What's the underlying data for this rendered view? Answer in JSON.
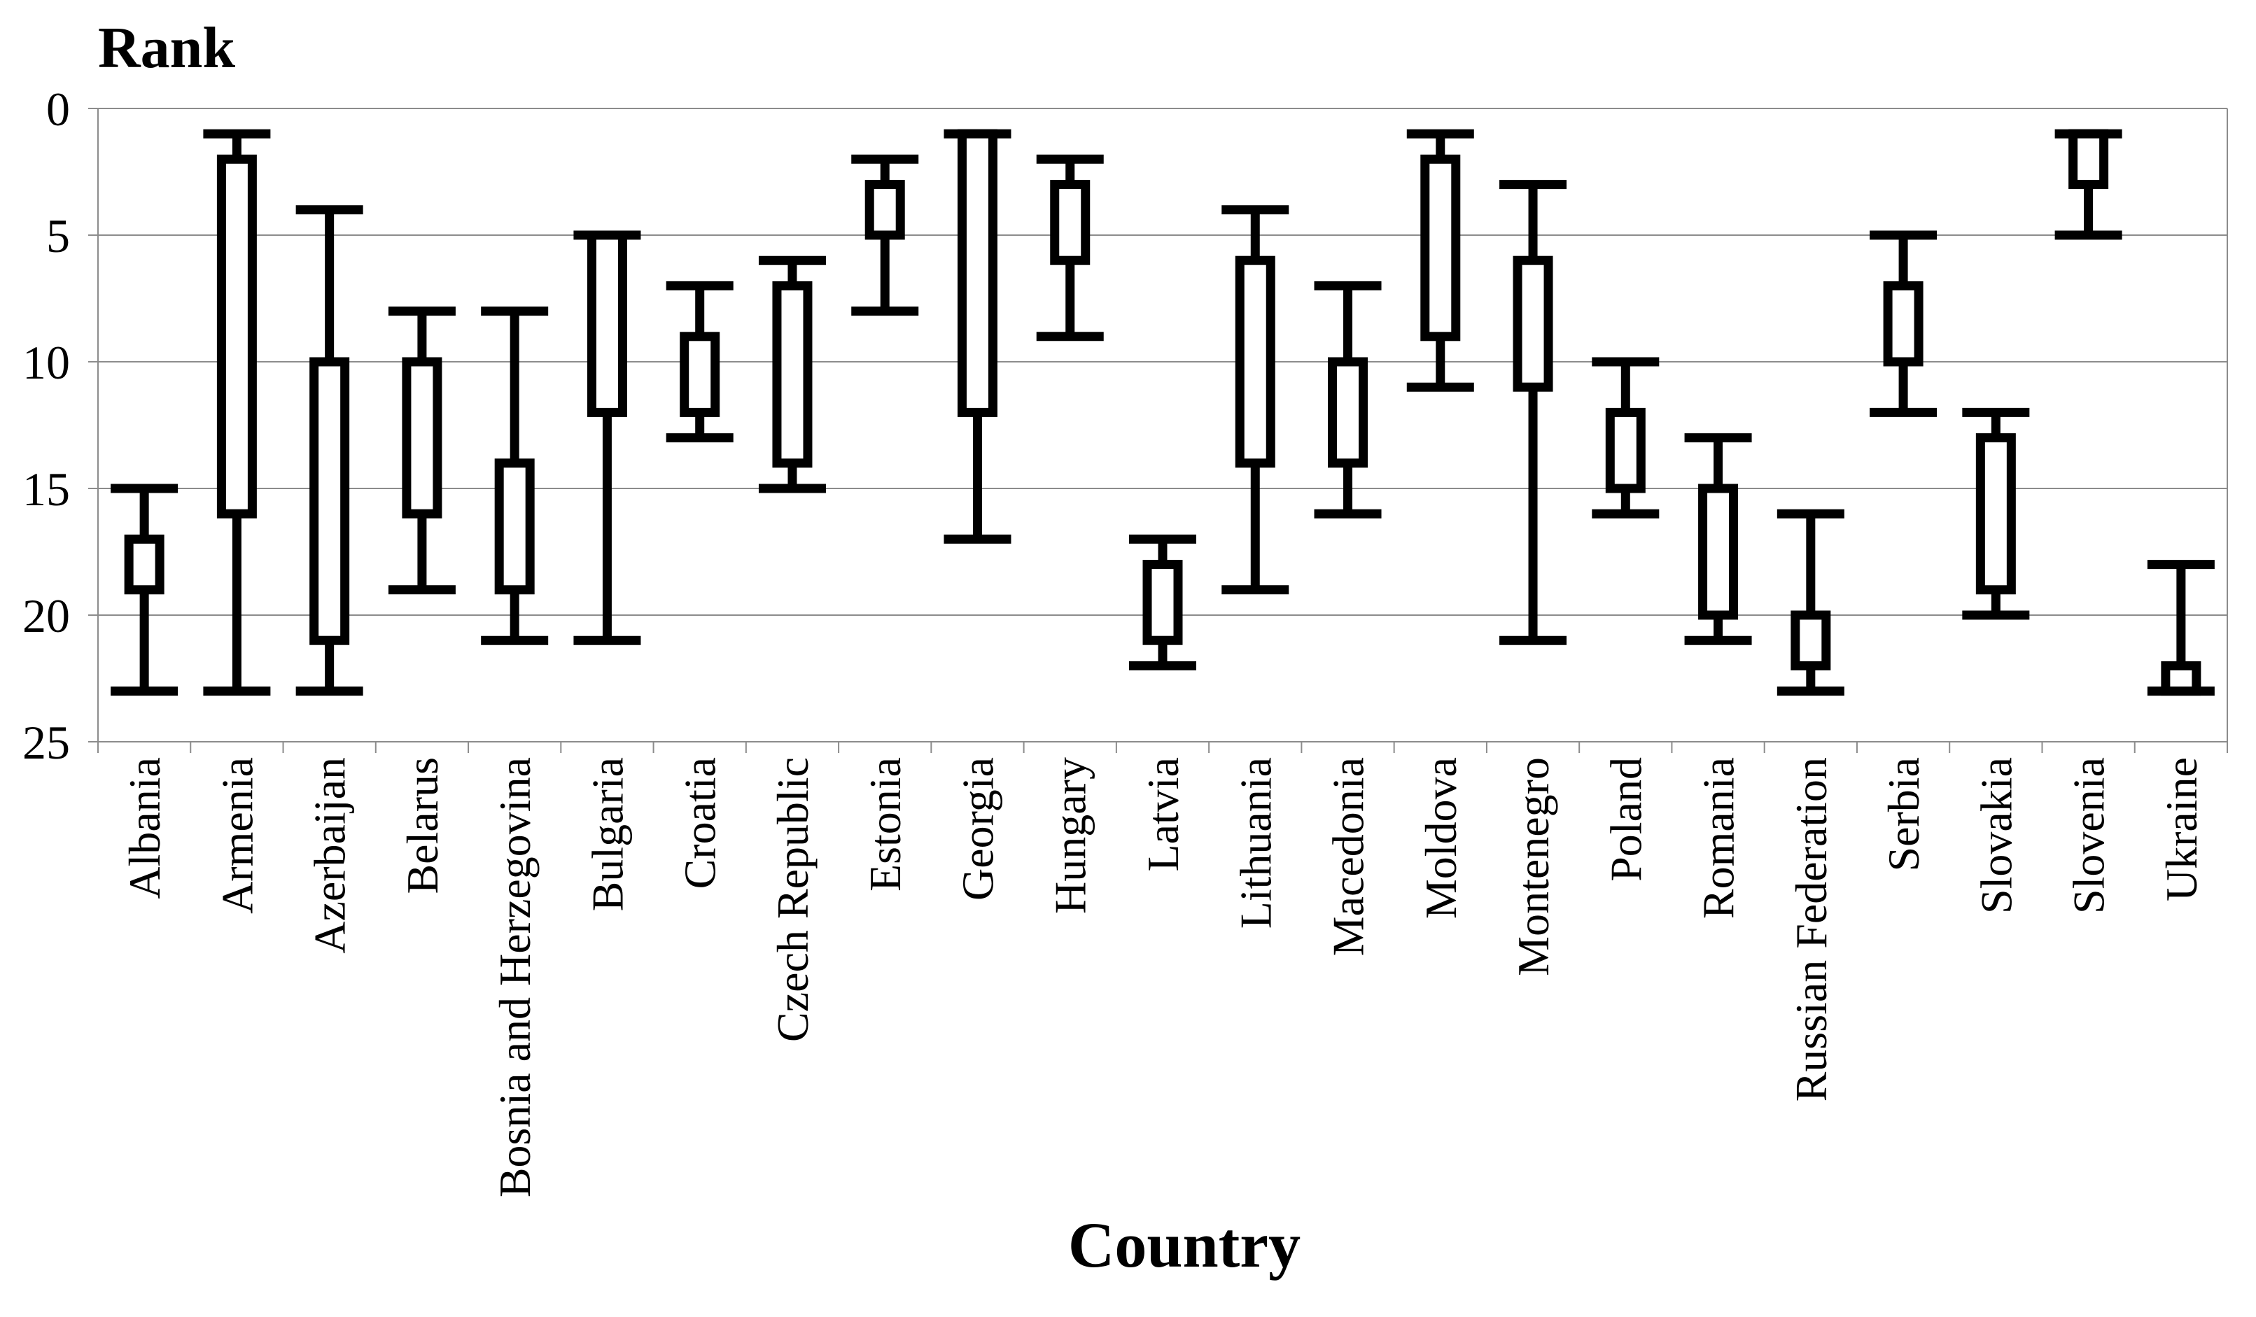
{
  "chart_data": {
    "type": "boxplot",
    "title": "",
    "ylabel": "Rank",
    "xlabel": "Country",
    "ylim": [
      0,
      25
    ],
    "y_inverted": true,
    "y_ticks": [
      0,
      5,
      10,
      15,
      20,
      25
    ],
    "grid": "horizontal",
    "colors": {
      "stroke": "#000000",
      "box_fill": "#ffffff",
      "grid": "#8c8c8c",
      "axis": "#8c8c8c"
    },
    "categories": [
      "Albania",
      "Armenia",
      "Azerbaijan",
      "Belarus",
      "Bosnia and Herzegovina",
      "Bulgaria",
      "Croatia",
      "Czech Republic",
      "Estonia",
      "Georgia",
      "Hungary",
      "Latvia",
      "Lithuania",
      "Macedonia",
      "Moldova",
      "Montenegro",
      "Poland",
      "Romania",
      "Russian Federation",
      "Serbia",
      "Slovakia",
      "Slovenia",
      "Ukraine"
    ],
    "series": [
      {
        "whisker_low": 15,
        "box_low": 17,
        "box_high": 19,
        "whisker_high": 23
      },
      {
        "whisker_low": 1,
        "box_low": 2,
        "box_high": 16,
        "whisker_high": 23
      },
      {
        "whisker_low": 4,
        "box_low": 10,
        "box_high": 21,
        "whisker_high": 23
      },
      {
        "whisker_low": 8,
        "box_low": 10,
        "box_high": 16,
        "whisker_high": 19
      },
      {
        "whisker_low": 8,
        "box_low": 14,
        "box_high": 19,
        "whisker_high": 21
      },
      {
        "whisker_low": 5,
        "box_low": 5,
        "box_high": 12,
        "whisker_high": 21
      },
      {
        "whisker_low": 7,
        "box_low": 9,
        "box_high": 12,
        "whisker_high": 13
      },
      {
        "whisker_low": 6,
        "box_low": 7,
        "box_high": 14,
        "whisker_high": 15
      },
      {
        "whisker_low": 2,
        "box_low": 3,
        "box_high": 5,
        "whisker_high": 8
      },
      {
        "whisker_low": 1,
        "box_low": 1,
        "box_high": 12,
        "whisker_high": 17
      },
      {
        "whisker_low": 2,
        "box_low": 3,
        "box_high": 6,
        "whisker_high": 9
      },
      {
        "whisker_low": 17,
        "box_low": 18,
        "box_high": 21,
        "whisker_high": 22
      },
      {
        "whisker_low": 4,
        "box_low": 6,
        "box_high": 14,
        "whisker_high": 19
      },
      {
        "whisker_low": 7,
        "box_low": 10,
        "box_high": 14,
        "whisker_high": 16
      },
      {
        "whisker_low": 1,
        "box_low": 2,
        "box_high": 9,
        "whisker_high": 11
      },
      {
        "whisker_low": 3,
        "box_low": 6,
        "box_high": 11,
        "whisker_high": 21
      },
      {
        "whisker_low": 10,
        "box_low": 12,
        "box_high": 15,
        "whisker_high": 16
      },
      {
        "whisker_low": 13,
        "box_low": 15,
        "box_high": 20,
        "whisker_high": 21
      },
      {
        "whisker_low": 16,
        "box_low": 20,
        "box_high": 22,
        "whisker_high": 23
      },
      {
        "whisker_low": 5,
        "box_low": 7,
        "box_high": 10,
        "whisker_high": 12
      },
      {
        "whisker_low": 12,
        "box_low": 13,
        "box_high": 19,
        "whisker_high": 20
      },
      {
        "whisker_low": 1,
        "box_low": 1,
        "box_high": 3,
        "whisker_high": 5
      },
      {
        "whisker_low": 18,
        "box_low": 22,
        "box_high": 23,
        "whisker_high": 23
      }
    ]
  }
}
